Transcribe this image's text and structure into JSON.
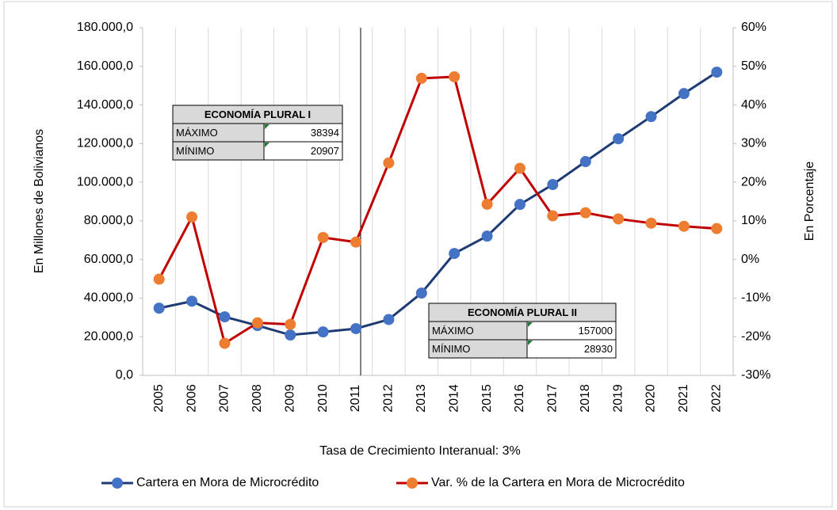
{
  "chart_data": {
    "type": "line",
    "categories": [
      "2005",
      "2006",
      "2007",
      "2008",
      "2009",
      "2010",
      "2011",
      "2012",
      "2013",
      "2014",
      "2015",
      "2016",
      "2017",
      "2018",
      "2019",
      "2020",
      "2021",
      "2022"
    ],
    "series": [
      {
        "name": "Cartera en Mora de Microcrédito",
        "color": "#1f3b73",
        "marker_color": "#4472c4",
        "axis": "y",
        "values": [
          34800,
          38394,
          30300,
          25800,
          20907,
          22500,
          24200,
          28930,
          42600,
          63100,
          72100,
          88500,
          98800,
          110700,
          122500,
          134000,
          145900,
          157000
        ]
      },
      {
        "name": "Var. % de la Cartera en Mora de Microcrédito",
        "color": "#c00000",
        "marker_color": "#ed7d31",
        "axis": "y2",
        "values": [
          -5.1,
          11,
          -21.7,
          -16.4,
          -16.8,
          5.7,
          4.5,
          25,
          46.9,
          47.3,
          14.3,
          23.6,
          11.3,
          12.1,
          10.5,
          9.4,
          8.6,
          8.0
        ]
      }
    ],
    "ylabel": "En Millones de Bolivianos",
    "y2label": "En Porcentaje",
    "xlabel": "Tasa de Crecimiento Interanual: 3%",
    "ylim": [
      0,
      180000
    ],
    "yticks": [
      {
        "value": 0,
        "label": "0,0"
      },
      {
        "value": 20000,
        "label": "20.000,0"
      },
      {
        "value": 40000,
        "label": "40.000,0"
      },
      {
        "value": 60000,
        "label": "60.000,0"
      },
      {
        "value": 80000,
        "label": "80.000,0"
      },
      {
        "value": 100000,
        "label": "100.000,0"
      },
      {
        "value": 120000,
        "label": "120.000,0"
      },
      {
        "value": 140000,
        "label": "140.000,0"
      },
      {
        "value": 160000,
        "label": "160.000,0"
      },
      {
        "value": 180000,
        "label": "180.000,0"
      }
    ],
    "y2lim": [
      -30,
      60
    ],
    "y2ticks": [
      {
        "value": -30,
        "label": "-30%"
      },
      {
        "value": -20,
        "label": "-20%"
      },
      {
        "value": -10,
        "label": "-10%"
      },
      {
        "value": 0,
        "label": "0%"
      },
      {
        "value": 10,
        "label": "10%"
      },
      {
        "value": 20,
        "label": "20%"
      },
      {
        "value": 30,
        "label": "30%"
      },
      {
        "value": 40,
        "label": "40%"
      },
      {
        "value": 50,
        "label": "50%"
      },
      {
        "value": 60,
        "label": "60%"
      }
    ],
    "tables": [
      {
        "title": "ECONOMÍA PLURAL I",
        "rows": [
          [
            "MÁXIMO",
            38394
          ],
          [
            "MÍNIMO",
            20907
          ]
        ]
      },
      {
        "title": "ECONOMÍA PLURAL II",
        "rows": [
          [
            "MÁXIMO",
            157000
          ],
          [
            "MÍNIMO",
            28930
          ]
        ]
      }
    ]
  }
}
